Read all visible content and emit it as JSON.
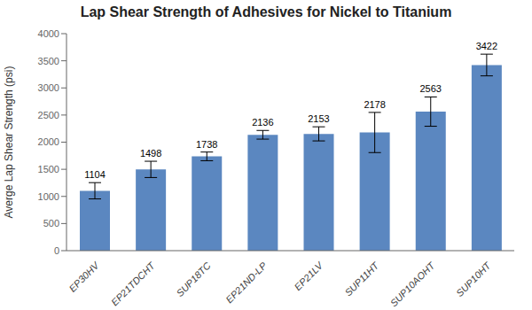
{
  "chart_data": {
    "type": "bar",
    "title": "Lap Shear Strength of Adhesives for Nickel to Titanium",
    "ylabel": "Averge Lap Shear Strength (psi)",
    "categories": [
      "EP30HV",
      "EP21TDCHT",
      "SUP18TC",
      "EP21ND-LP",
      "EP21LV",
      "SUP11HT",
      "SUP10AOHT",
      "SUP10HT"
    ],
    "values": [
      1104,
      1498,
      1738,
      2136,
      2153,
      2178,
      2563,
      3422
    ],
    "errors": [
      150,
      150,
      80,
      80,
      130,
      370,
      270,
      200
    ],
    "color": "#5B87C0",
    "ylim": [
      0,
      4000
    ],
    "yticks": [
      0,
      500,
      1000,
      1500,
      2000,
      2500,
      3000,
      3500,
      4000
    ],
    "grid": false,
    "data_labels": true
  }
}
